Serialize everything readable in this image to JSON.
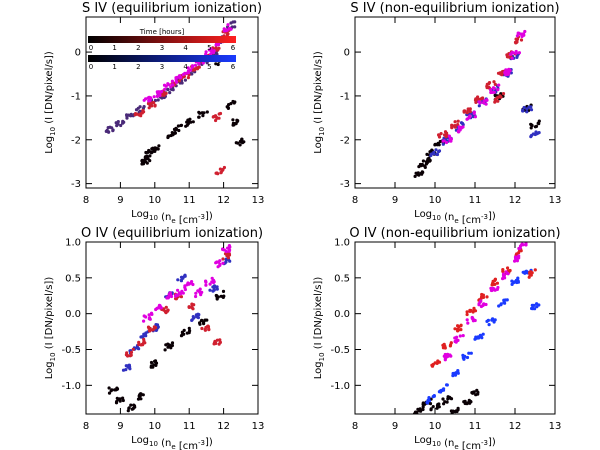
{
  "chart_data": [
    {
      "type": "scatter",
      "title": "S IV (equilibrium ionization)",
      "xlabel": {
        "pre": "Log",
        "sub": "10",
        "mid": " (n",
        "sub2": "e",
        "mid2": " [cm",
        "sup": "-3",
        "post": "])"
      },
      "ylabel": {
        "pre": "Log",
        "sub": "10",
        "post": " (I [DN/pixel/s])"
      },
      "xlim": [
        8,
        13
      ],
      "ylim": [
        -3.1,
        0.8
      ],
      "xticks": [
        "8",
        "9",
        "10",
        "11",
        "12",
        "13"
      ],
      "xtick_values": [
        8,
        9,
        10,
        11,
        12,
        13
      ],
      "yticks": [
        "-3",
        "-2",
        "-1",
        "0"
      ],
      "ytick_values": [
        -3,
        -2,
        -1,
        0
      ],
      "series": [
        {
          "name": "time 0 h",
          "color": "#0a0005",
          "points": [
            [
              9.75,
              -2.45
            ],
            [
              9.85,
              -2.3
            ],
            [
              9.7,
              -2.5
            ],
            [
              10.0,
              -2.2
            ],
            [
              10.5,
              -1.85
            ],
            [
              10.7,
              -1.75
            ],
            [
              11.0,
              -1.6
            ],
            [
              11.4,
              -1.4
            ],
            [
              12.3,
              -1.6
            ],
            [
              12.5,
              -2.05
            ],
            [
              12.2,
              -1.2
            ],
            [
              11.9,
              -0.2
            ]
          ]
        },
        {
          "name": "time 1 h",
          "color": "#4a2a78",
          "points": [
            [
              8.7,
              -1.75
            ],
            [
              9.0,
              -1.62
            ],
            [
              9.3,
              -1.45
            ],
            [
              9.6,
              -1.3
            ],
            [
              9.9,
              -1.15
            ],
            [
              10.2,
              -1.0
            ],
            [
              10.5,
              -0.85
            ],
            [
              10.8,
              -0.65
            ],
            [
              11.1,
              -0.45
            ],
            [
              11.4,
              -0.25
            ],
            [
              11.7,
              -0.05
            ],
            [
              12.0,
              0.3
            ],
            [
              12.2,
              0.6
            ]
          ]
        },
        {
          "name": "time 3 h",
          "color": "#d02030",
          "points": [
            [
              9.55,
              -1.4
            ],
            [
              9.9,
              -1.2
            ],
            [
              10.2,
              -0.95
            ],
            [
              10.6,
              -0.75
            ],
            [
              10.9,
              -0.55
            ],
            [
              11.2,
              -0.35
            ],
            [
              11.5,
              -0.15
            ],
            [
              11.8,
              0.1
            ],
            [
              12.1,
              0.45
            ],
            [
              11.8,
              -1.5
            ],
            [
              11.9,
              -2.7
            ]
          ]
        },
        {
          "name": "time 5 h",
          "color": "#e000e0",
          "points": [
            [
              9.8,
              -1.1
            ],
            [
              10.1,
              -0.95
            ],
            [
              10.4,
              -0.75
            ],
            [
              10.7,
              -0.6
            ],
            [
              11.0,
              -0.4
            ],
            [
              11.3,
              -0.22
            ],
            [
              11.6,
              0.0
            ],
            [
              11.9,
              0.25
            ],
            [
              12.1,
              0.55
            ]
          ]
        }
      ],
      "colorbars": [
        {
          "title": "Time [hours]",
          "gradient": [
            "#000000",
            "#ff2020"
          ],
          "ticks": [
            "0",
            "1",
            "2",
            "3",
            "4",
            "5",
            "6"
          ]
        },
        {
          "title": "",
          "gradient": [
            "#000000",
            "#1a3aff"
          ],
          "ticks": [
            "0",
            "1",
            "2",
            "3",
            "4",
            "5",
            "6"
          ]
        }
      ]
    },
    {
      "type": "scatter",
      "title": "S IV (non-equilibrium ionization)",
      "xlabel": {
        "pre": "Log",
        "sub": "10",
        "mid": " (n",
        "sub2": "e",
        "mid2": " [cm",
        "sup": "-3",
        "post": "])"
      },
      "ylabel": {
        "pre": "Log",
        "sub": "10",
        "post": " (I [DN/pixel/s])"
      },
      "xlim": [
        8,
        13
      ],
      "ylim": [
        -3.1,
        0.8
      ],
      "xticks": [
        "8",
        "9",
        "10",
        "11",
        "12",
        "13"
      ],
      "xtick_values": [
        8,
        9,
        10,
        11,
        12,
        13
      ],
      "yticks": [
        "-3",
        "-2",
        "-1",
        "0"
      ],
      "ytick_values": [
        -3,
        -2,
        -1,
        0
      ],
      "series": [
        {
          "name": "time 0 h",
          "color": "#0a0005",
          "points": [
            [
              9.6,
              -2.8
            ],
            [
              9.7,
              -2.6
            ],
            [
              9.8,
              -2.5
            ],
            [
              9.9,
              -2.3
            ],
            [
              10.1,
              -2.1
            ],
            [
              11.6,
              -1.0
            ],
            [
              12.3,
              -1.3
            ],
            [
              12.5,
              -1.65
            ]
          ]
        },
        {
          "name": "time 1 h",
          "color": "#3030c0",
          "points": [
            [
              10.0,
              -2.3
            ],
            [
              10.3,
              -2.0
            ],
            [
              10.6,
              -1.7
            ],
            [
              10.9,
              -1.45
            ],
            [
              11.2,
              -1.15
            ],
            [
              11.5,
              -0.85
            ],
            [
              11.8,
              -0.5
            ],
            [
              12.0,
              -0.1
            ],
            [
              12.3,
              -1.3
            ],
            [
              12.5,
              -1.9
            ]
          ]
        },
        {
          "name": "time 3 h",
          "color": "#d02030",
          "points": [
            [
              10.2,
              -1.9
            ],
            [
              10.5,
              -1.65
            ],
            [
              10.8,
              -1.35
            ],
            [
              11.1,
              -1.05
            ],
            [
              11.4,
              -0.75
            ],
            [
              11.7,
              -0.45
            ],
            [
              11.9,
              -0.05
            ],
            [
              12.1,
              0.3
            ],
            [
              11.6,
              -1.05
            ]
          ]
        },
        {
          "name": "time 5 h",
          "color": "#e000e0",
          "points": [
            [
              10.3,
              -2.0
            ],
            [
              10.6,
              -1.75
            ],
            [
              10.9,
              -1.45
            ],
            [
              11.2,
              -1.15
            ],
            [
              11.5,
              -0.85
            ],
            [
              11.8,
              -0.45
            ],
            [
              12.0,
              -0.05
            ],
            [
              12.15,
              0.4
            ]
          ]
        }
      ]
    },
    {
      "type": "scatter",
      "title": "O IV (equilibrium ionization)",
      "xlabel": {
        "pre": "Log",
        "sub": "10",
        "mid": " (n",
        "sub2": "e",
        "mid2": " [cm",
        "sup": "-3",
        "post": "])"
      },
      "ylabel": {
        "pre": "Log",
        "sub": "10",
        "post": " (I [DN/pixel/s])"
      },
      "xlim": [
        8,
        13
      ],
      "ylim": [
        -1.4,
        1.0
      ],
      "xticks": [
        "8",
        "9",
        "10",
        "11",
        "12",
        "13"
      ],
      "xtick_values": [
        8,
        9,
        10,
        11,
        12,
        13
      ],
      "yticks": [
        "-1.0",
        "-0.5",
        "0.0",
        "0.5",
        "1.0"
      ],
      "ytick_values": [
        -1,
        -0.5,
        0,
        0.5,
        1
      ],
      "series": [
        {
          "name": "time 0 h",
          "color": "#0a0005",
          "points": [
            [
              8.8,
              -1.05
            ],
            [
              9.0,
              -1.2
            ],
            [
              9.3,
              -1.3
            ],
            [
              9.6,
              -1.15
            ],
            [
              10.0,
              -0.7
            ],
            [
              10.4,
              -0.45
            ],
            [
              10.9,
              -0.25
            ],
            [
              11.4,
              -0.1
            ],
            [
              11.9,
              0.25
            ]
          ]
        },
        {
          "name": "time 1 h",
          "color": "#3030c0",
          "points": [
            [
              9.2,
              -0.75
            ],
            [
              9.4,
              -0.5
            ],
            [
              9.7,
              -0.3
            ],
            [
              10.0,
              -0.2
            ],
            [
              10.4,
              0.25
            ],
            [
              10.8,
              0.5
            ],
            [
              11.2,
              -0.05
            ],
            [
              11.7,
              0.35
            ],
            [
              12.1,
              0.75
            ]
          ]
        },
        {
          "name": "time 3 h",
          "color": "#d02030",
          "points": [
            [
              9.3,
              -0.55
            ],
            [
              9.6,
              -0.4
            ],
            [
              9.9,
              -0.2
            ],
            [
              10.3,
              0.05
            ],
            [
              10.7,
              0.25
            ],
            [
              11.1,
              0.1
            ],
            [
              11.5,
              -0.2
            ],
            [
              11.8,
              -0.4
            ],
            [
              12.05,
              0.8
            ]
          ]
        },
        {
          "name": "time 5 h",
          "color": "#e000e0",
          "points": [
            [
              9.8,
              -0.05
            ],
            [
              10.1,
              0.1
            ],
            [
              10.4,
              0.25
            ],
            [
              10.7,
              0.3
            ],
            [
              11.0,
              0.4
            ],
            [
              11.3,
              0.3
            ],
            [
              11.6,
              0.45
            ],
            [
              11.9,
              0.7
            ],
            [
              12.1,
              0.9
            ]
          ]
        }
      ]
    },
    {
      "type": "scatter",
      "title": "O IV (non-equilibrium ionization)",
      "xlabel": {
        "pre": "Log",
        "sub": "10",
        "mid": " (n",
        "sub2": "e",
        "mid2": " [cm",
        "sup": "-3",
        "post": "])"
      },
      "ylabel": {
        "pre": "Log",
        "sub": "10",
        "post": " (I [DN/pixel/s])"
      },
      "xlim": [
        8,
        13
      ],
      "ylim": [
        -1.4,
        1.0
      ],
      "xticks": [
        "8",
        "9",
        "10",
        "11",
        "12",
        "13"
      ],
      "xtick_values": [
        8,
        9,
        10,
        11,
        12,
        13
      ],
      "yticks": [
        "-1.0",
        "-0.5",
        "0.0",
        "0.5",
        "1.0"
      ],
      "ytick_values": [
        -1,
        -0.5,
        0,
        0.5,
        1
      ],
      "series": [
        {
          "name": "time 0 h",
          "color": "#0a0005",
          "points": [
            [
              9.6,
              -1.35
            ],
            [
              9.8,
              -1.25
            ],
            [
              10.0,
              -1.3
            ],
            [
              10.3,
              -1.2
            ],
            [
              10.5,
              -1.35
            ],
            [
              10.8,
              -1.25
            ],
            [
              11.0,
              -1.1
            ]
          ]
        },
        {
          "name": "time 1 h",
          "color": "#1a3aff",
          "points": [
            [
              9.9,
              -1.2
            ],
            [
              10.2,
              -1.05
            ],
            [
              10.5,
              -0.85
            ],
            [
              10.8,
              -0.6
            ],
            [
              11.1,
              -0.35
            ],
            [
              11.4,
              -0.1
            ],
            [
              11.7,
              0.15
            ],
            [
              12.0,
              0.45
            ],
            [
              12.3,
              0.6
            ],
            [
              12.5,
              0.1
            ]
          ]
        },
        {
          "name": "time 3 h",
          "color": "#e02020",
          "points": [
            [
              10.0,
              -0.7
            ],
            [
              10.3,
              -0.45
            ],
            [
              10.6,
              -0.2
            ],
            [
              10.9,
              0.05
            ],
            [
              11.2,
              0.25
            ],
            [
              11.5,
              0.45
            ],
            [
              11.8,
              0.6
            ],
            [
              12.1,
              0.85
            ],
            [
              12.4,
              0.55
            ]
          ]
        },
        {
          "name": "time 5 h",
          "color": "#e000e0",
          "points": [
            [
              10.3,
              -0.6
            ],
            [
              10.6,
              -0.35
            ],
            [
              10.9,
              -0.1
            ],
            [
              11.2,
              0.15
            ],
            [
              11.5,
              0.35
            ],
            [
              11.8,
              0.55
            ],
            [
              12.0,
              0.75
            ],
            [
              12.2,
              0.95
            ]
          ]
        }
      ]
    }
  ]
}
